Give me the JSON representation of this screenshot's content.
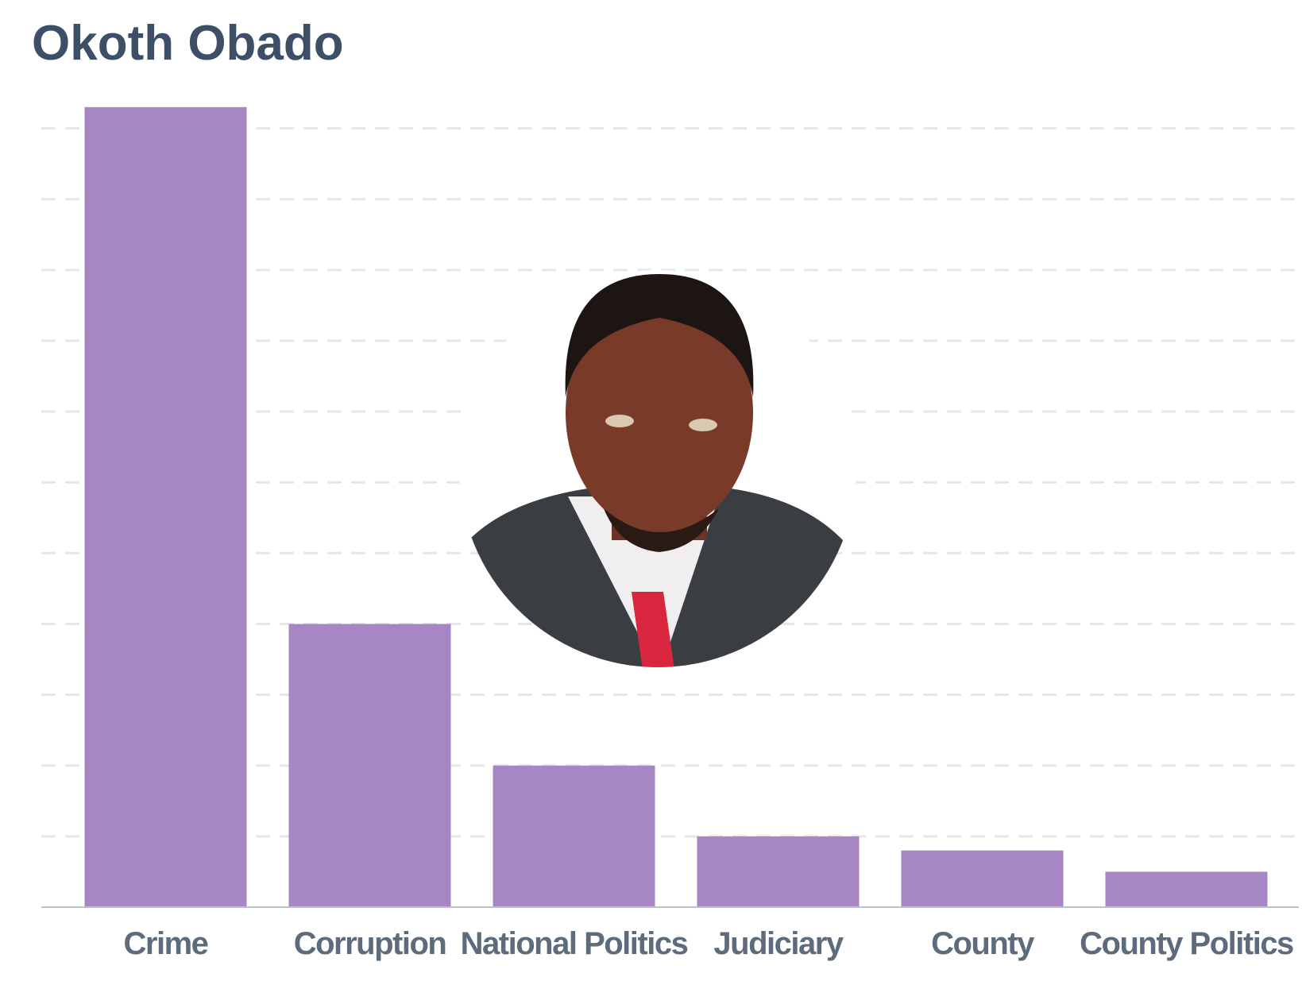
{
  "chart_data": {
    "type": "bar",
    "title": "Okoth Obado",
    "categories": [
      "Crime",
      "Corruption",
      "National Politics",
      "Judiciary",
      "County",
      "County Politics"
    ],
    "values": [
      11.3,
      4.0,
      2.0,
      1.0,
      0.8,
      0.5
    ],
    "color": "#a687c4",
    "ylim": [
      0,
      11.5
    ],
    "yticks": [
      0,
      1,
      2,
      3,
      4,
      5,
      6,
      7,
      8,
      9,
      10,
      11
    ],
    "grid": true
  }
}
